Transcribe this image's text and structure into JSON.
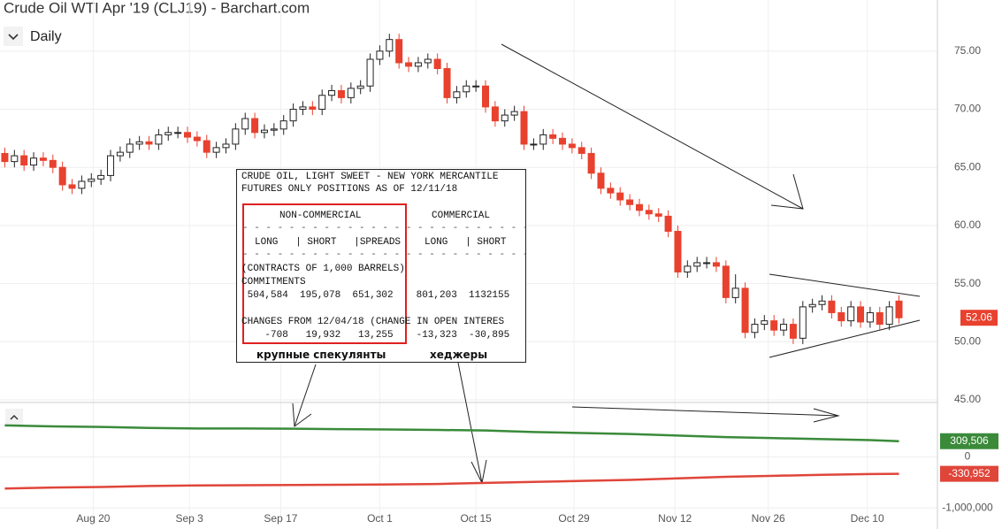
{
  "chart_data": {
    "type": "candlestick",
    "title": "Crude Oil WTI Apr '19 (CLJ19) - Barchart.com",
    "interval": "Daily",
    "open": [
      66.2,
      65.5,
      66,
      65.2,
      65.8,
      65.6,
      65,
      63.5,
      63.2,
      63.8,
      64,
      64.3,
      66,
      66.3,
      67,
      67.2,
      67,
      67.8,
      68,
      68,
      67.6,
      67.3,
      66.3,
      66.7,
      67,
      68.3,
      69.2,
      68,
      68.2,
      68.3,
      69,
      70,
      70.2,
      70,
      71.2,
      71.6,
      71,
      71.8,
      72,
      74.3,
      75,
      76,
      74,
      73.7,
      74,
      74.3,
      73.5,
      71,
      71.5,
      72,
      72,
      70.2,
      69,
      69.5,
      69.8,
      67,
      67,
      67.8,
      67.5,
      67,
      66.7,
      66.2,
      64.5,
      63.2,
      62.8,
      62.2,
      61.8,
      61.3,
      61,
      60.8,
      59.5,
      56,
      56.5,
      56.8,
      56.8,
      56.5,
      53.8,
      54.6,
      50.8,
      51.5,
      51.8,
      51,
      51.5,
      50.3,
      53,
      53.2,
      53.5,
      52.5,
      51.8,
      53,
      51.7,
      52.5,
      51.5,
      53.5
    ],
    "high": [
      66.7,
      66.5,
      66.5,
      66.3,
      66.3,
      66.1,
      65.5,
      64,
      64.3,
      64.5,
      64.8,
      66.5,
      66.8,
      67.5,
      67.7,
      67.7,
      68.3,
      68.5,
      68.5,
      68.5,
      68.1,
      67.8,
      67.2,
      67.5,
      68.8,
      69.7,
      69.7,
      68.7,
      68.8,
      69.5,
      70.5,
      70.7,
      70.7,
      71.7,
      72.1,
      72.1,
      72.3,
      72.5,
      74.8,
      75.5,
      76.5,
      76.5,
      74.5,
      74.5,
      74.8,
      74.8,
      74,
      72,
      72.5,
      72.5,
      72.5,
      70.7,
      70,
      70.3,
      70.3,
      67.5,
      68.3,
      68.3,
      68,
      67.5,
      67.2,
      66.7,
      65,
      63.7,
      63.3,
      62.7,
      62.3,
      61.8,
      61.5,
      61.3,
      60,
      57,
      57.3,
      57.3,
      57.3,
      57,
      55.8,
      55.1,
      52,
      52.3,
      52.3,
      52,
      52,
      53.5,
      53.7,
      54,
      54,
      53,
      53.5,
      53.5,
      53,
      53,
      53.5,
      54
    ],
    "low": [
      65,
      65,
      64.7,
      64.7,
      65.1,
      64.5,
      63,
      62.7,
      62.7,
      63.3,
      63.5,
      63.8,
      65.5,
      65.8,
      66.5,
      66.5,
      66.5,
      67.3,
      67.5,
      67.1,
      66.8,
      65.8,
      65.8,
      66.2,
      66.5,
      67.8,
      67.5,
      67.5,
      67.7,
      67.8,
      68.5,
      69.5,
      69.5,
      69.5,
      70.7,
      70.5,
      70.5,
      71.3,
      71.5,
      73.8,
      74.5,
      73.5,
      73.2,
      73.2,
      73.5,
      73,
      70.5,
      70.5,
      71,
      71.5,
      69.7,
      68.5,
      68.5,
      69,
      66.5,
      66.5,
      66.5,
      67,
      66.5,
      66.2,
      65.7,
      64,
      62.7,
      62.3,
      61.7,
      61.3,
      60.8,
      60.5,
      60.3,
      59,
      55.5,
      55.5,
      56,
      56.3,
      56,
      53.3,
      53.3,
      50.3,
      50.3,
      51,
      50.5,
      50.5,
      49.8,
      49.8,
      52.5,
      52.7,
      52,
      51.3,
      51.3,
      51.2,
      51.2,
      51,
      51,
      51.56
    ],
    "close": [
      65.5,
      66,
      65.2,
      65.8,
      65.6,
      65,
      63.5,
      63.2,
      63.8,
      64,
      64.3,
      66,
      66.3,
      67,
      67.2,
      67,
      67.8,
      68,
      68,
      67.6,
      67.3,
      66.3,
      66.7,
      67,
      68.3,
      69.2,
      68,
      68.2,
      68.3,
      69,
      70,
      70.2,
      70,
      71.2,
      71.6,
      71,
      71.8,
      72,
      74.3,
      75,
      76,
      74,
      73.7,
      74,
      74.3,
      73.5,
      71,
      71.5,
      72,
      72,
      70.2,
      69,
      69.5,
      69.8,
      67,
      67,
      67.8,
      67.5,
      67,
      66.7,
      66.2,
      64.5,
      63.2,
      62.8,
      62.2,
      61.8,
      61.3,
      61,
      60.8,
      59.5,
      56,
      56.5,
      56.8,
      56.8,
      56.5,
      53.8,
      54.6,
      50.8,
      51.5,
      51.8,
      51,
      51.5,
      50.3,
      53,
      53.2,
      53.5,
      52.5,
      51.8,
      53,
      51.7,
      52.5,
      51.5,
      53,
      52.06
    ],
    "up_color": "#ffffff",
    "down_color": "#e8412e",
    "last_price": 52.06,
    "ylim": [
      45,
      79.4
    ],
    "yticks": [
      {
        "value": 45,
        "label": "45.00"
      },
      {
        "value": 50,
        "label": "50.00"
      },
      {
        "value": 55,
        "label": "55.00"
      },
      {
        "value": 60,
        "label": "60.00"
      },
      {
        "value": 65,
        "label": "65.00"
      },
      {
        "value": 70,
        "label": "70.00"
      },
      {
        "value": 75,
        "label": "75.00"
      }
    ],
    "xlim": [
      -0.5,
      97
    ],
    "xticks": [
      {
        "value": 9.2,
        "label": "Aug 20"
      },
      {
        "value": 19.2,
        "label": "Sep 3"
      },
      {
        "value": 28.7,
        "label": "Sep 17"
      },
      {
        "value": 39,
        "label": "Oct 1"
      },
      {
        "value": 49,
        "label": "Oct 15"
      },
      {
        "value": 59.2,
        "label": "Oct 29"
      },
      {
        "value": 69.7,
        "label": "Nov 12"
      },
      {
        "value": 79.4,
        "label": "Nov 26"
      },
      {
        "value": 89.7,
        "label": "Dec 10"
      }
    ],
    "series": [
      {
        "name": "Non-Commercial",
        "color": "#3a8a3a",
        "axis": "y2",
        "x": [
          0,
          5,
          10,
          15,
          20,
          25,
          30,
          35,
          40,
          45,
          50,
          55,
          60,
          65,
          70,
          75,
          80,
          85,
          90,
          93
        ],
        "values": [
          620000,
          600000,
          590000,
          570000,
          560000,
          560000,
          555000,
          545000,
          540000,
          530000,
          520000,
          490000,
          470000,
          450000,
          420000,
          390000,
          370000,
          350000,
          330000,
          309506
        ],
        "value_labels": [
          "309,506"
        ]
      },
      {
        "name": "Commercial",
        "color": "#e0453a",
        "axis": "y2",
        "x": [
          0,
          5,
          10,
          15,
          20,
          25,
          30,
          35,
          40,
          45,
          50,
          55,
          60,
          65,
          70,
          75,
          80,
          85,
          90,
          93
        ],
        "values": [
          -620000,
          -600000,
          -590000,
          -570000,
          -560000,
          -555000,
          -550000,
          -545000,
          -540000,
          -530000,
          -510000,
          -490000,
          -470000,
          -450000,
          -420000,
          -390000,
          -370000,
          -350000,
          -335000,
          -330952
        ],
        "value_labels": [
          "-330,952"
        ]
      }
    ],
    "y2lim": [
      -1310000,
      1017000
    ],
    "y2ticks": [
      0,
      {
        "value": -1000000,
        "label": "-1,000,000"
      }
    ],
    "annotation_box": {
      "lines": [
        "CRUDE OIL, LIGHT SWEET - NEW YORK MERCANTILE",
        "FUTURES ONLY POSITIONS AS OF 12/11/18"
      ],
      "non_commercial": {
        "header": "NON-COMMERCIAL",
        "columns": "LONG   | SHORT   |SPREADS",
        "commitments": " 504,584  195,078  651,302",
        "changes": "    -708   19,932   13,255"
      },
      "commercial": {
        "header": "COMMERCIAL",
        "columns": "LONG   | SHORT",
        "commitments": " 801,203  1132155",
        "changes": " -13,323  -30,895"
      },
      "units": "(CONTRACTS OF 1,000 BARRELS)",
      "commitments_label": "COMMITMENTS",
      "changes_label": "CHANGES FROM 12/04/18 (CHANGE IN OPEN INTERES",
      "label_speculators": "крупные спекулянты",
      "label_hedgers": "хеджеры"
    }
  }
}
